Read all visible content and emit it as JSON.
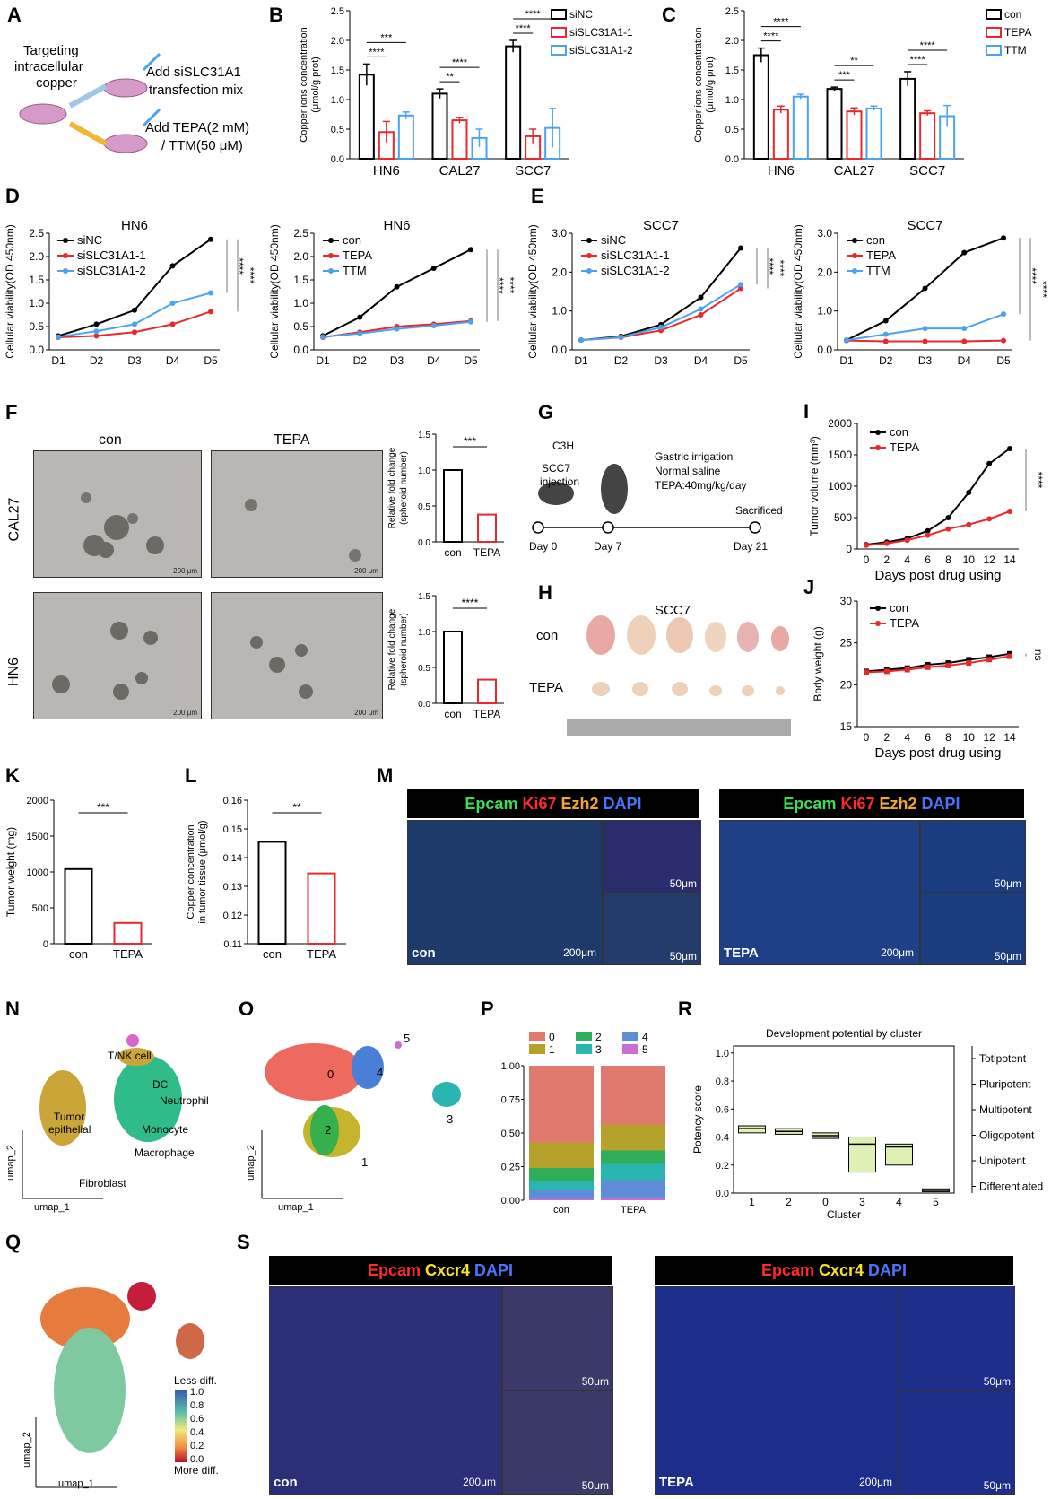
{
  "panels": [
    "A",
    "B",
    "C",
    "D",
    "E",
    "F",
    "G",
    "H",
    "I",
    "J",
    "K",
    "L",
    "M",
    "N",
    "O",
    "P",
    "R",
    "Q",
    "S"
  ],
  "A": {
    "text1": "Targeting",
    "text2": "intracellular",
    "text3": "copper",
    "text4": "Add siSLC31A1",
    "text5": "transfection mix",
    "text6": "Add TEPA(2 mM)",
    "text7": "/ TTM(50 μM)"
  },
  "B": {
    "chart_data": {
      "type": "bar",
      "categories": [
        "HN6",
        "CAL27",
        "SCC7"
      ],
      "ylabel": "Copper ions concentration (μmol/g prot)",
      "ylim": [
        0,
        2.5
      ],
      "yticks": [
        "0.0",
        "0.5",
        "1.0",
        "1.5",
        "2.0",
        "2.5"
      ],
      "series": [
        {
          "name": "siNC",
          "values": [
            1.42,
            1.1,
            1.9
          ],
          "err": [
            0.18,
            0.08,
            0.1
          ],
          "color": "#000000"
        },
        {
          "name": "siSLC31A1-1",
          "values": [
            0.45,
            0.65,
            0.38
          ],
          "err": [
            0.18,
            0.05,
            0.12
          ],
          "color": "#e8282b"
        },
        {
          "name": "siSLC31A1-2",
          "values": [
            0.73,
            0.35,
            0.52
          ],
          "err": [
            0.06,
            0.15,
            0.33
          ],
          "color": "#4aa3f0"
        }
      ],
      "sig": [
        "****",
        "***",
        "**",
        "****",
        "****",
        "****"
      ]
    }
  },
  "C": {
    "chart_data": {
      "type": "bar",
      "categories": [
        "HN6",
        "CAL27",
        "SCC7"
      ],
      "ylabel": "Copper ions concentration (μmol/g prot)",
      "ylim": [
        0,
        2.5
      ],
      "yticks": [
        "0.0",
        "0.5",
        "1.0",
        "1.5",
        "2.0",
        "2.5"
      ],
      "series": [
        {
          "name": "con",
          "values": [
            1.75,
            1.18,
            1.35
          ],
          "err": [
            0.12,
            0.03,
            0.12
          ],
          "color": "#000000"
        },
        {
          "name": "TEPA",
          "values": [
            0.83,
            0.8,
            0.77
          ],
          "err": [
            0.06,
            0.06,
            0.04
          ],
          "color": "#e8282b"
        },
        {
          "name": "TTM",
          "values": [
            1.05,
            0.85,
            0.72
          ],
          "err": [
            0.04,
            0.04,
            0.18
          ],
          "color": "#4aa3f0"
        }
      ],
      "sig": [
        "****",
        "****",
        "***",
        "**",
        "****",
        "****"
      ]
    }
  },
  "D1": {
    "chart_data": {
      "type": "line",
      "title": "HN6",
      "x": [
        "D1",
        "D2",
        "D3",
        "D4",
        "D5"
      ],
      "ylabel": "Cellular viability(OD 450nm)",
      "ylim": [
        0,
        2.5
      ],
      "yticks": [
        "0.0",
        "0.5",
        "1.0",
        "1.5",
        "2.0",
        "2.5"
      ],
      "series": [
        {
          "name": "siNC",
          "values": [
            0.3,
            0.55,
            0.85,
            1.8,
            2.37
          ],
          "color": "#000000"
        },
        {
          "name": "siSLC31A1-1",
          "values": [
            0.27,
            0.3,
            0.38,
            0.55,
            0.82
          ],
          "color": "#e8282b"
        },
        {
          "name": "siSLC31A1-2",
          "values": [
            0.28,
            0.4,
            0.55,
            1.0,
            1.22
          ],
          "color": "#4aa3f0"
        }
      ],
      "sig": [
        "****",
        "****"
      ]
    }
  },
  "D2": {
    "chart_data": {
      "type": "line",
      "title": "HN6",
      "x": [
        "D1",
        "D2",
        "D3",
        "D4",
        "D5"
      ],
      "ylabel": "Cellular viability(OD 450nm)",
      "ylim": [
        0,
        2.5
      ],
      "yticks": [
        "0.0",
        "0.5",
        "1.0",
        "1.5",
        "2.0",
        "2.5"
      ],
      "series": [
        {
          "name": "con",
          "values": [
            0.3,
            0.7,
            1.35,
            1.75,
            2.15
          ],
          "color": "#000000"
        },
        {
          "name": "TEPA",
          "values": [
            0.27,
            0.38,
            0.5,
            0.55,
            0.62
          ],
          "color": "#e8282b"
        },
        {
          "name": "TTM",
          "values": [
            0.28,
            0.35,
            0.45,
            0.52,
            0.6
          ],
          "color": "#4aa3f0"
        }
      ],
      "sig": [
        "****",
        "****"
      ]
    }
  },
  "E1": {
    "chart_data": {
      "type": "line",
      "title": "SCC7",
      "x": [
        "D1",
        "D2",
        "D3",
        "D4",
        "D5"
      ],
      "ylabel": "Cellular viability(OD 450nm)",
      "ylim": [
        0,
        3.0
      ],
      "yticks": [
        "0.0",
        "1.0",
        "2.0",
        "3.0"
      ],
      "series": [
        {
          "name": "siNC",
          "values": [
            0.25,
            0.35,
            0.65,
            1.35,
            2.62
          ],
          "color": "#000000"
        },
        {
          "name": "siSLC31A1-1",
          "values": [
            0.25,
            0.32,
            0.5,
            0.9,
            1.58
          ],
          "color": "#e8282b"
        },
        {
          "name": "siSLC31A1-2",
          "values": [
            0.25,
            0.33,
            0.58,
            1.05,
            1.68
          ],
          "color": "#4aa3f0"
        }
      ],
      "sig": [
        "****",
        "****"
      ]
    }
  },
  "E2": {
    "chart_data": {
      "type": "line",
      "title": "SCC7",
      "x": [
        "D1",
        "D2",
        "D3",
        "D4",
        "D5"
      ],
      "ylabel": "Cellular viability(OD 450nm)",
      "ylim": [
        0,
        3.0
      ],
      "yticks": [
        "0.0",
        "1.0",
        "2.0",
        "3.0"
      ],
      "series": [
        {
          "name": "con",
          "values": [
            0.25,
            0.75,
            1.58,
            2.5,
            2.88
          ],
          "color": "#000000"
        },
        {
          "name": "TEPA",
          "values": [
            0.24,
            0.22,
            0.22,
            0.22,
            0.24
          ],
          "color": "#e8282b"
        },
        {
          "name": "TTM",
          "values": [
            0.25,
            0.4,
            0.55,
            0.55,
            0.92
          ],
          "color": "#4aa3f0"
        }
      ],
      "sig": [
        "****",
        "****"
      ]
    }
  },
  "F": {
    "col1": "con",
    "col2": "TEPA",
    "row1": "CAL27",
    "row2": "HN6",
    "scalebar": "200 μm",
    "bar1": {
      "chart_data": {
        "type": "bar",
        "categories": [
          "con",
          "TEPA"
        ],
        "values": [
          1.0,
          0.38
        ],
        "ylabel": "Relative fold change (spheroid number)",
        "ylim": [
          0,
          1.5
        ],
        "yticks": [
          "0.0",
          "0.5",
          "1.0",
          "1.5"
        ],
        "sig": "***"
      }
    },
    "bar2": {
      "chart_data": {
        "type": "bar",
        "categories": [
          "con",
          "TEPA"
        ],
        "values": [
          1.0,
          0.33
        ],
        "ylabel": "Relative fold change (spheroid number)",
        "ylim": [
          0,
          1.5
        ],
        "yticks": [
          "0.0",
          "0.5",
          "1.0",
          "1.5"
        ],
        "sig": "****"
      }
    }
  },
  "G": {
    "strain": "C3H",
    "inj1": "SCC7",
    "inj2": "injection",
    "t1": "Gastric irrigation",
    "t2": "Normal saline",
    "t3": "TEPA:40mg/kg/day",
    "end": "Sacrificed",
    "d0": "Day 0",
    "d7": "Day 7",
    "d21": "Day 21"
  },
  "H": {
    "title": "SCC7",
    "row1": "con",
    "row2": "TEPA"
  },
  "I": {
    "chart_data": {
      "type": "line",
      "x": [
        0,
        2,
        4,
        6,
        8,
        10,
        12,
        14
      ],
      "xlabel": "Days post drug using",
      "ylabel": "Tumor volume (mm³)",
      "ylim": [
        0,
        2000
      ],
      "yticks": [
        "0",
        "500",
        "1000",
        "1500",
        "2000"
      ],
      "series": [
        {
          "name": "con",
          "values": [
            70,
            110,
            170,
            290,
            500,
            900,
            1360,
            1600
          ],
          "color": "#000000"
        },
        {
          "name": "TEPA",
          "values": [
            60,
            90,
            140,
            220,
            320,
            390,
            480,
            600
          ],
          "color": "#e8282b"
        }
      ],
      "sig": "****"
    }
  },
  "J": {
    "chart_data": {
      "type": "line",
      "x": [
        0,
        2,
        4,
        6,
        8,
        10,
        12,
        14
      ],
      "xlabel": "Days post drug using",
      "ylabel": "Body weight (g)",
      "ylim": [
        15,
        30
      ],
      "yticks": [
        "15",
        "20",
        "25",
        "30"
      ],
      "series": [
        {
          "name": "con",
          "values": [
            21.6,
            21.8,
            22,
            22.4,
            22.6,
            23,
            23.3,
            23.7
          ],
          "color": "#000000"
        },
        {
          "name": "TEPA",
          "values": [
            21.5,
            21.6,
            21.8,
            22.1,
            22.3,
            22.6,
            23,
            23.4
          ],
          "color": "#e8282b"
        }
      ],
      "sig": "ns"
    }
  },
  "K": {
    "chart_data": {
      "type": "bar",
      "categories": [
        "con",
        "TEPA"
      ],
      "values": [
        1040,
        290
      ],
      "ylabel": "Tumor weight (mg)",
      "ylim": [
        0,
        2000
      ],
      "yticks": [
        "0",
        "500",
        "1000",
        "1500",
        "2000"
      ],
      "sig": "***"
    }
  },
  "L": {
    "chart_data": {
      "type": "bar",
      "categories": [
        "con",
        "TEPA"
      ],
      "values": [
        0.1455,
        0.1345
      ],
      "ylabel": "Copper concentration in tumor tissue (μmol/g)",
      "ylim": [
        0.11,
        0.16
      ],
      "yticks": [
        "0.11",
        "0.12",
        "0.13",
        "0.14",
        "0.15",
        "0.16"
      ],
      "sig": "**"
    }
  },
  "M": {
    "m1": "Epcam",
    "m2": "Ki67",
    "m3": "Ezh2",
    "m4": "DAPI",
    "left": "con",
    "right": "TEPA",
    "s200": "200μm",
    "s50": "50μm"
  },
  "N": {
    "c1": "T/NK cell",
    "c2": "DC",
    "c3": "Neutrophil",
    "c4": "Tumor",
    "c5": "epithelial",
    "c6": "Monocyte",
    "c7": "Macrophage",
    "c8": "Fibroblast",
    "ax1": "umap_1",
    "ax2": "umap_2"
  },
  "O": {
    "ax1": "umap_1",
    "ax2": "umap_2",
    "clusters": [
      "0",
      "1",
      "2",
      "3",
      "4",
      "5"
    ]
  },
  "P": {
    "chart_data": {
      "type": "bar",
      "categories": [
        "con",
        "TEPA"
      ],
      "legend": [
        "0",
        "1",
        "2",
        "3",
        "4",
        "5"
      ],
      "yticks": [
        "0.00",
        "0.25",
        "0.50",
        "0.75",
        "1.00"
      ],
      "series": [
        {
          "name": "0",
          "values": [
            0.57,
            0.44
          ],
          "color": "#e07a6f"
        },
        {
          "name": "1",
          "values": [
            0.19,
            0.19
          ],
          "color": "#b5a22a"
        },
        {
          "name": "2",
          "values": [
            0.1,
            0.1
          ],
          "color": "#2fae5a"
        },
        {
          "name": "3",
          "values": [
            0.06,
            0.12
          ],
          "color": "#2bb5b0"
        },
        {
          "name": "4",
          "values": [
            0.07,
            0.13
          ],
          "color": "#5f8cd8"
        },
        {
          "name": "5",
          "values": [
            0.01,
            0.02
          ],
          "color": "#c86fd0"
        }
      ]
    }
  },
  "R": {
    "chart_data": {
      "type": "box",
      "title": "Development potential by cluster",
      "categories": [
        "1",
        "2",
        "0",
        "3",
        "4",
        "5"
      ],
      "xlabel": "Cluster",
      "ylabel": "Potency score",
      "ylim": [
        0,
        1.0
      ],
      "yticks": [
        "0.0",
        "0.2",
        "0.4",
        "0.6",
        "0.8",
        "1.0"
      ],
      "medians": [
        0.46,
        0.44,
        0.41,
        0.35,
        0.33,
        0.02
      ],
      "q1": [
        0.43,
        0.42,
        0.39,
        0.15,
        0.2,
        0.01
      ],
      "q3": [
        0.48,
        0.46,
        0.43,
        0.4,
        0.35,
        0.03
      ],
      "levels": [
        "Totipotent",
        "Pluripotent",
        "Multipotent",
        "Oligopotent",
        "Unipotent",
        "Differentiated"
      ]
    }
  },
  "Q": {
    "ax1": "umap_1",
    "ax2": "umap_2",
    "legend_title": "Less diff.",
    "legend_bottom": "More diff.",
    "ticks": [
      "1.0",
      "0.8",
      "0.6",
      "0.4",
      "0.2",
      "0.0"
    ]
  },
  "S": {
    "m1": "Epcam",
    "m2": "Cxcr4",
    "m3": "DAPI",
    "left": "con",
    "right": "TEPA",
    "s200": "200μm",
    "s50": "50μm"
  },
  "colors": {
    "black": "#000000",
    "red": "#e8282b",
    "blue": "#4aa3f0"
  }
}
